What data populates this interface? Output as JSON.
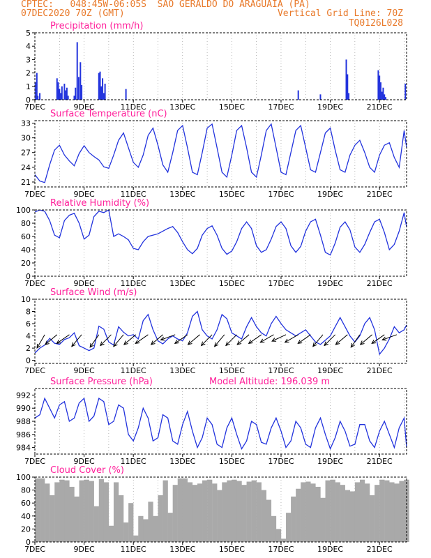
{
  "header": {
    "line1": "CPTEC:   048:45W-06:05S  SAO GERALDO DO ARAGUAIA (PA)",
    "line2": "07DEC2020 70Z (GMT)",
    "grid_line": "Vertical Grid Line: 70Z",
    "code": "TQ0126L028"
  },
  "colors": {
    "accent": "#e8792a",
    "title": "#ff1f9a",
    "series": "#2233dd",
    "cloud": "#a9a9a9"
  },
  "xaxis": {
    "labels": [
      "7DEC",
      "9DEC",
      "11DEC",
      "13DEC",
      "15DEC",
      "17DEC",
      "19DEC",
      "21DEC"
    ],
    "day_range": [
      7,
      22.1
    ]
  },
  "chart_data": [
    {
      "type": "bar",
      "title": "Precipitation (mm/h)",
      "ylim": [
        0,
        5
      ],
      "yticks": [
        0,
        1,
        2,
        3,
        4,
        5
      ],
      "x": [
        7.02,
        7.08,
        7.12,
        7.2,
        7.9,
        7.95,
        8.0,
        8.05,
        8.1,
        8.2,
        8.25,
        8.3,
        8.35,
        8.6,
        8.65,
        8.72,
        8.78,
        8.85,
        8.9,
        9.6,
        9.65,
        9.7,
        9.75,
        9.8,
        9.85,
        10.7,
        17.7,
        18.6,
        19.65,
        19.7,
        19.75,
        20.95,
        21.0,
        21.05,
        21.1,
        21.15,
        21.2,
        21.25,
        22.05
      ],
      "values": [
        1.3,
        2.0,
        0.3,
        0.5,
        1.6,
        1.3,
        0.8,
        0.5,
        1.0,
        1.2,
        0.7,
        0.9,
        0.3,
        0.3,
        0.9,
        4.3,
        1.7,
        2.8,
        1.1,
        2.0,
        2.1,
        1.0,
        1.6,
        0.5,
        1.2,
        0.8,
        0.7,
        0.4,
        3.0,
        1.9,
        0.5,
        2.2,
        1.8,
        1.3,
        0.6,
        0.9,
        0.4,
        0.2,
        1.2
      ]
    },
    {
      "type": "line",
      "title": "Surface Temperature (nC)",
      "ylim": [
        20,
        33.5
      ],
      "yticks": [
        21,
        24,
        27,
        30,
        33
      ],
      "x": [
        7.0,
        7.2,
        7.4,
        7.6,
        7.8,
        8.0,
        8.2,
        8.4,
        8.6,
        8.8,
        9.0,
        9.2,
        9.4,
        9.6,
        9.8,
        10.0,
        10.2,
        10.4,
        10.6,
        10.8,
        11.0,
        11.2,
        11.4,
        11.6,
        11.8,
        12.0,
        12.2,
        12.4,
        12.6,
        12.8,
        13.0,
        13.2,
        13.4,
        13.6,
        13.8,
        14.0,
        14.2,
        14.4,
        14.6,
        14.8,
        15.0,
        15.2,
        15.4,
        15.6,
        15.8,
        16.0,
        16.2,
        16.4,
        16.6,
        16.8,
        17.0,
        17.2,
        17.4,
        17.6,
        17.8,
        18.0,
        18.2,
        18.4,
        18.6,
        18.8,
        19.0,
        19.2,
        19.4,
        19.6,
        19.8,
        20.0,
        20.2,
        20.4,
        20.6,
        20.8,
        21.0,
        21.2,
        21.4,
        21.6,
        21.8,
        22.0,
        22.1
      ],
      "values": [
        22.5,
        21.2,
        20.9,
        24.5,
        27.5,
        28.5,
        26.5,
        25.3,
        24.3,
        26.8,
        28.4,
        27.0,
        26.2,
        25.5,
        24.1,
        23.8,
        26.5,
        29.5,
        31.0,
        28.0,
        25.0,
        24.0,
        26.5,
        30.5,
        32.0,
        28.5,
        24.5,
        23.0,
        27.0,
        31.5,
        32.5,
        28.0,
        23.0,
        22.5,
        27.0,
        32.0,
        32.8,
        28.0,
        23.0,
        22.0,
        26.5,
        31.5,
        32.5,
        28.0,
        23.0,
        22.0,
        26.5,
        31.5,
        32.8,
        28.0,
        23.0,
        22.5,
        27.0,
        31.5,
        32.5,
        28.0,
        23.5,
        23.0,
        27.0,
        31.0,
        32.0,
        27.5,
        23.5,
        23.0,
        26.5,
        28.5,
        29.5,
        27.0,
        24.0,
        23.0,
        26.5,
        28.5,
        29.0,
        26.0,
        24.0,
        31.5,
        28.0
      ]
    },
    {
      "type": "line",
      "title": "Relative Humidity (%)",
      "ylim": [
        0,
        100
      ],
      "yticks": [
        0,
        20,
        40,
        60,
        80,
        100
      ],
      "x": [
        7.0,
        7.2,
        7.4,
        7.6,
        7.8,
        8.0,
        8.2,
        8.4,
        8.6,
        8.8,
        9.0,
        9.2,
        9.4,
        9.6,
        9.8,
        10.0,
        10.2,
        10.4,
        10.6,
        10.8,
        11.0,
        11.2,
        11.4,
        11.6,
        11.8,
        12.0,
        12.2,
        12.4,
        12.6,
        12.8,
        13.0,
        13.2,
        13.4,
        13.6,
        13.8,
        14.0,
        14.2,
        14.4,
        14.6,
        14.8,
        15.0,
        15.2,
        15.4,
        15.6,
        15.8,
        16.0,
        16.2,
        16.4,
        16.6,
        16.8,
        17.0,
        17.2,
        17.4,
        17.6,
        17.8,
        18.0,
        18.2,
        18.4,
        18.6,
        18.8,
        19.0,
        19.2,
        19.4,
        19.6,
        19.8,
        20.0,
        20.2,
        20.4,
        20.6,
        20.8,
        21.0,
        21.2,
        21.4,
        21.6,
        21.8,
        22.0,
        22.1
      ],
      "values": [
        97,
        100,
        98,
        84,
        62,
        58,
        84,
        92,
        95,
        80,
        56,
        62,
        90,
        98,
        96,
        100,
        60,
        64,
        60,
        55,
        42,
        40,
        52,
        60,
        62,
        64,
        68,
        72,
        75,
        66,
        52,
        40,
        34,
        42,
        62,
        72,
        76,
        62,
        42,
        33,
        38,
        52,
        72,
        82,
        72,
        46,
        36,
        40,
        56,
        75,
        82,
        72,
        46,
        36,
        45,
        68,
        82,
        86,
        62,
        36,
        32,
        50,
        74,
        82,
        70,
        44,
        36,
        48,
        66,
        82,
        86,
        66,
        40,
        48,
        68,
        96,
        74
      ]
    },
    {
      "type": "line",
      "title": "Surface Wind (m/s)",
      "ylim": [
        -0.5,
        10
      ],
      "yticks": [
        0,
        2,
        4,
        6,
        8,
        10
      ],
      "x": [
        7.0,
        7.2,
        7.4,
        7.6,
        7.8,
        8.0,
        8.2,
        8.4,
        8.6,
        8.8,
        9.0,
        9.2,
        9.4,
        9.6,
        9.8,
        10.0,
        10.2,
        10.4,
        10.6,
        10.8,
        11.0,
        11.2,
        11.4,
        11.6,
        11.8,
        12.0,
        12.2,
        12.4,
        12.6,
        12.8,
        13.0,
        13.2,
        13.4,
        13.6,
        13.8,
        14.0,
        14.2,
        14.4,
        14.6,
        14.8,
        15.0,
        15.2,
        15.4,
        15.6,
        15.8,
        16.0,
        16.2,
        16.4,
        16.6,
        16.8,
        17.0,
        17.2,
        17.4,
        17.6,
        17.8,
        18.0,
        18.2,
        18.4,
        18.6,
        18.8,
        19.0,
        19.2,
        19.4,
        19.6,
        19.8,
        20.0,
        20.2,
        20.4,
        20.6,
        20.8,
        21.0,
        21.2,
        21.4,
        21.6,
        21.8,
        22.0,
        22.1
      ],
      "values": [
        1.2,
        2.0,
        2.5,
        3.6,
        2.8,
        2.6,
        3.4,
        3.7,
        4.5,
        2.4,
        2.0,
        1.6,
        2.0,
        5.6,
        5.1,
        3.0,
        2.5,
        5.5,
        4.6,
        4.0,
        4.2,
        3.5,
        6.5,
        7.5,
        5.0,
        3.2,
        2.7,
        3.5,
        4.0,
        3.5,
        3.2,
        4.5,
        7.2,
        8.0,
        5.0,
        4.0,
        3.5,
        5.0,
        7.5,
        6.8,
        4.5,
        4.0,
        3.5,
        5.5,
        7.0,
        5.5,
        4.5,
        4.0,
        6.0,
        7.2,
        6.0,
        5.0,
        4.5,
        4.0,
        4.5,
        5.0,
        4.0,
        3.0,
        2.6,
        3.3,
        4.0,
        5.5,
        7.0,
        5.5,
        4.0,
        3.0,
        4.0,
        6.0,
        7.0,
        5.0,
        1.0,
        2.0,
        3.5,
        5.5,
        4.5,
        5.0,
        5.8
      ],
      "arrow_x": [
        7.4,
        7.9,
        8.4,
        8.9,
        9.6,
        10.1,
        10.6,
        11.1,
        11.6,
        12.2,
        12.7,
        13.2,
        13.7,
        14.2,
        14.7,
        15.2,
        15.7,
        16.2,
        16.7,
        17.2,
        17.7,
        18.2,
        18.7,
        19.2,
        19.7,
        20.2,
        20.7,
        21.2,
        21.7
      ],
      "arrow_dir_deg": [
        60,
        40,
        35,
        50,
        55,
        45,
        50,
        40,
        35,
        40,
        20,
        35,
        40,
        45,
        50,
        45,
        40,
        35,
        30,
        25,
        30,
        35,
        50,
        45,
        40,
        55,
        40,
        35,
        20
      ]
    },
    {
      "type": "line",
      "title": "Surface Pressure (hPa)",
      "subtitle": "Model Altitude: 196.039 m",
      "ylim": [
        983,
        993
      ],
      "yticks": [
        984,
        986,
        988,
        990,
        992
      ],
      "x": [
        7.0,
        7.2,
        7.4,
        7.6,
        7.8,
        8.0,
        8.2,
        8.4,
        8.6,
        8.8,
        9.0,
        9.2,
        9.4,
        9.6,
        9.8,
        10.0,
        10.2,
        10.4,
        10.6,
        10.8,
        11.0,
        11.2,
        11.4,
        11.6,
        11.8,
        12.0,
        12.2,
        12.4,
        12.6,
        12.8,
        13.0,
        13.2,
        13.4,
        13.6,
        13.8,
        14.0,
        14.2,
        14.4,
        14.6,
        14.8,
        15.0,
        15.2,
        15.4,
        15.6,
        15.8,
        16.0,
        16.2,
        16.4,
        16.6,
        16.8,
        17.0,
        17.2,
        17.4,
        17.6,
        17.8,
        18.0,
        18.2,
        18.4,
        18.6,
        18.8,
        19.0,
        19.2,
        19.4,
        19.6,
        19.8,
        20.0,
        20.2,
        20.4,
        20.6,
        20.8,
        21.0,
        21.2,
        21.4,
        21.6,
        21.8,
        22.0,
        22.1
      ],
      "values": [
        988.5,
        989.0,
        991.5,
        990.0,
        988.5,
        990.5,
        991.0,
        988.0,
        988.5,
        990.8,
        991.5,
        988.0,
        988.8,
        991.5,
        991.0,
        987.5,
        988.0,
        990.5,
        990.0,
        986.0,
        985.0,
        987.0,
        990.0,
        988.5,
        985.0,
        985.5,
        989.0,
        988.5,
        985.0,
        984.5,
        987.5,
        989.5,
        986.5,
        984.0,
        985.5,
        988.5,
        987.5,
        984.5,
        984.0,
        987.0,
        988.5,
        986.0,
        983.8,
        985.0,
        988.0,
        987.5,
        984.8,
        984.5,
        987.0,
        988.5,
        986.5,
        984.0,
        985.0,
        988.0,
        987.0,
        984.5,
        984.0,
        987.0,
        988.5,
        986.0,
        983.8,
        985.5,
        988.0,
        986.5,
        984.2,
        984.5,
        987.5,
        987.5,
        985.0,
        984.0,
        986.5,
        988.0,
        986.0,
        984.0,
        987.0,
        988.5,
        984.0
      ]
    },
    {
      "type": "bar",
      "title": "Cloud Cover (%)",
      "ylim": [
        0,
        100
      ],
      "yticks": [
        0,
        20,
        40,
        60,
        80,
        100
      ],
      "x": [
        7.0,
        7.2,
        7.4,
        7.6,
        7.8,
        8.0,
        8.2,
        8.4,
        8.6,
        8.8,
        9.0,
        9.2,
        9.4,
        9.6,
        9.8,
        10.0,
        10.2,
        10.4,
        10.6,
        10.8,
        11.0,
        11.2,
        11.4,
        11.6,
        11.8,
        12.0,
        12.2,
        12.4,
        12.6,
        12.8,
        13.0,
        13.2,
        13.4,
        13.6,
        13.8,
        14.0,
        14.2,
        14.4,
        14.6,
        14.8,
        15.0,
        15.2,
        15.4,
        15.6,
        15.8,
        16.0,
        16.2,
        16.4,
        16.6,
        16.8,
        17.0,
        17.2,
        17.4,
        17.6,
        17.8,
        18.0,
        18.2,
        18.4,
        18.6,
        18.8,
        19.0,
        19.2,
        19.4,
        19.6,
        19.8,
        20.0,
        20.2,
        20.4,
        20.6,
        20.8,
        21.0,
        21.2,
        21.4,
        21.6,
        21.8,
        22.0
      ],
      "values": [
        98,
        98,
        90,
        72,
        92,
        96,
        95,
        85,
        70,
        95,
        96,
        94,
        55,
        97,
        92,
        25,
        92,
        72,
        30,
        60,
        10,
        40,
        35,
        62,
        40,
        72,
        95,
        45,
        88,
        98,
        98,
        92,
        88,
        90,
        95,
        96,
        90,
        80,
        92,
        95,
        96,
        94,
        88,
        93,
        95,
        92,
        80,
        65,
        40,
        20,
        5,
        45,
        70,
        82,
        92,
        93,
        90,
        85,
        68,
        95,
        96,
        92,
        88,
        80,
        78,
        92,
        96,
        90,
        72,
        88,
        96,
        95,
        92,
        90,
        94,
        96
      ]
    }
  ]
}
